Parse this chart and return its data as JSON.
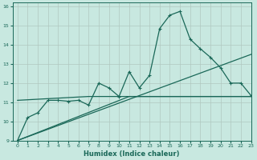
{
  "xlabel": "Humidex (Indice chaleur)",
  "xlim": [
    -0.5,
    23
  ],
  "ylim": [
    9,
    16.2
  ],
  "yticks": [
    9,
    10,
    11,
    12,
    13,
    14,
    15,
    16
  ],
  "xticks": [
    0,
    1,
    2,
    3,
    4,
    5,
    6,
    7,
    8,
    9,
    10,
    11,
    12,
    13,
    14,
    15,
    16,
    17,
    18,
    19,
    20,
    21,
    22,
    23
  ],
  "bg_color": "#c8e8e0",
  "grid_color": "#b0c8c0",
  "line_color": "#1a6858",
  "series1_x": [
    0,
    1,
    2,
    3,
    4,
    5,
    6,
    7,
    8,
    9,
    10,
    11,
    12,
    13,
    14,
    15,
    16,
    17,
    18,
    19,
    20,
    21,
    22,
    23
  ],
  "series1_y": [
    9.0,
    10.2,
    10.45,
    11.1,
    11.1,
    11.05,
    11.1,
    10.85,
    12.0,
    11.75,
    11.3,
    12.6,
    11.75,
    12.4,
    14.85,
    15.55,
    15.75,
    14.3,
    13.8,
    13.35,
    12.8,
    12.0,
    12.0,
    11.35
  ],
  "line1_x": [
    0,
    23
  ],
  "line1_y": [
    9.0,
    13.5
  ],
  "line2_x": [
    0,
    11,
    23
  ],
  "line2_y": [
    9.0,
    11.3,
    11.3
  ],
  "line3_x": [
    0,
    7,
    23
  ],
  "line3_y": [
    11.1,
    11.3,
    11.3
  ]
}
